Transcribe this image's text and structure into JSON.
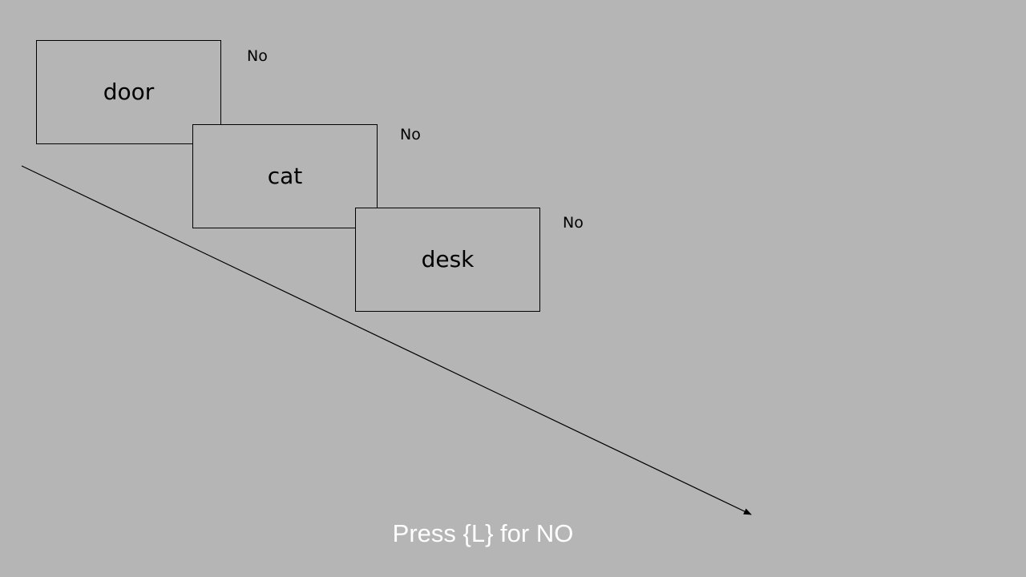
{
  "trials": [
    {
      "word": "door",
      "response": "No"
    },
    {
      "word": "cat",
      "response": "No"
    },
    {
      "word": "desk",
      "response": "No"
    }
  ],
  "instruction": "Press {L} for NO",
  "colors": {
    "background": "#b5b5b5",
    "box_border": "#000000",
    "text": "#000000",
    "instruction_text": "#ffffff"
  }
}
